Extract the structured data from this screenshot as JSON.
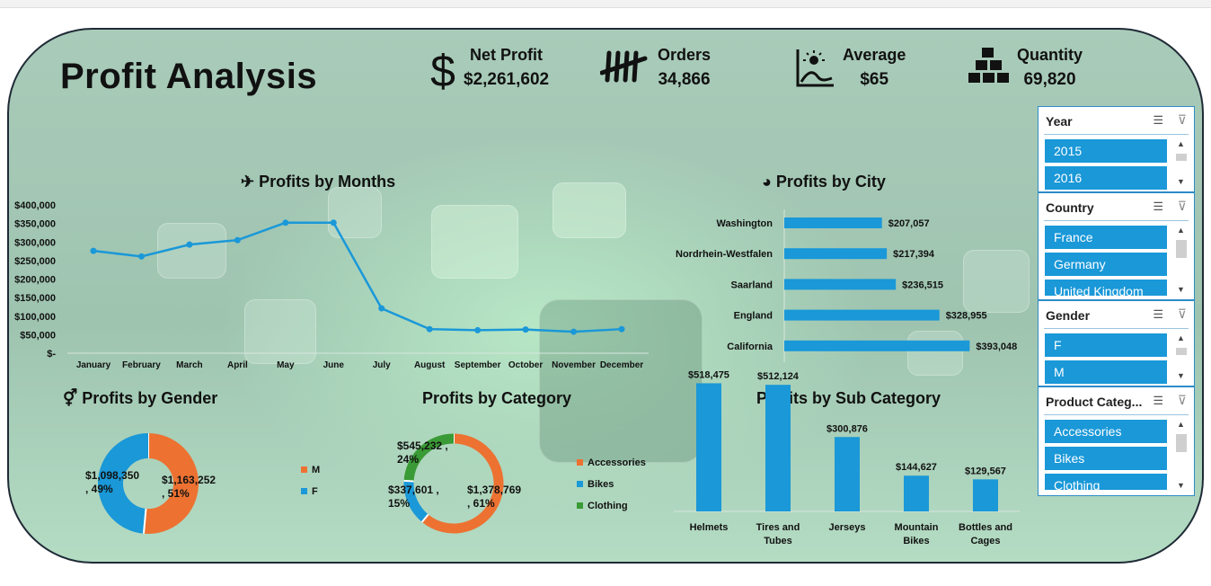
{
  "dashboard": {
    "title": "Profit Analysis",
    "kpis": [
      {
        "label": "Net Profit",
        "value": "$2,261,602",
        "icon": "dollar-icon"
      },
      {
        "label": "Orders",
        "value": "34,866",
        "icon": "tally-icon"
      },
      {
        "label": "Average",
        "value": "$65",
        "icon": "chart-average-icon"
      },
      {
        "label": "Quantity",
        "value": "69,820",
        "icon": "boxes-icon"
      }
    ]
  },
  "colors": {
    "blue": "#1a98d8",
    "orange": "#ed7232",
    "green": "#3a9a35",
    "text": "#111111"
  },
  "chart_data": [
    {
      "type": "line",
      "title": "Profits by Months",
      "categories": [
        "January",
        "February",
        "March",
        "April",
        "May",
        "June",
        "July",
        "August",
        "September",
        "October",
        "November",
        "December"
      ],
      "values": [
        276000,
        261000,
        293000,
        305000,
        352000,
        352000,
        121000,
        65000,
        62000,
        64000,
        58000,
        65000
      ],
      "ylim": [
        0,
        400000
      ],
      "yticks": [
        "$-",
        "$50,000",
        "$100,000",
        "$150,000",
        "$200,000",
        "$250,000",
        "$300,000",
        "$350,000",
        "$400,000"
      ],
      "legend": "none"
    },
    {
      "type": "bar",
      "orientation": "horizontal",
      "title": "Profits by City",
      "categories": [
        "Washington",
        "Nordrhein-Westfalen",
        "Saarland",
        "England",
        "California"
      ],
      "values": [
        207057,
        217394,
        236515,
        328955,
        393048
      ],
      "labels": [
        "$207,057",
        "$217,394",
        "$236,515",
        "$328,955",
        "$393,048"
      ]
    },
    {
      "type": "pie",
      "title": "Profits by Gender",
      "categories": [
        "M",
        "F"
      ],
      "values": [
        1163252,
        1098350
      ],
      "labels": [
        "$1,163,252 , 51%",
        "$1,098,350 , 49%"
      ],
      "legend": "right"
    },
    {
      "type": "pie",
      "title": "Profits by Category",
      "categories": [
        "Accessories",
        "Bikes",
        "Clothing"
      ],
      "values": [
        1378769,
        337601,
        545232
      ],
      "labels": [
        "$1,378,769 , 61%",
        "$337,601 , 15%",
        "$545,232 , 24%"
      ],
      "legend": "right"
    },
    {
      "type": "bar",
      "title": "Profits by Sub Category",
      "categories": [
        "Helmets",
        "Tires and Tubes",
        "Jerseys",
        "Mountain Bikes",
        "Bottles and Cages"
      ],
      "values": [
        518475,
        512124,
        300876,
        144627,
        129567
      ],
      "labels": [
        "$518,475",
        "$512,124",
        "$300,876",
        "$144,627",
        "$129,567"
      ]
    }
  ],
  "slicers": [
    {
      "title": "Year",
      "items": [
        "2015",
        "2016"
      ]
    },
    {
      "title": "Country",
      "items": [
        "France",
        "Germany",
        "United Kingdom"
      ]
    },
    {
      "title": "Gender",
      "items": [
        "F",
        "M"
      ]
    },
    {
      "title": "Product Categ...",
      "items": [
        "Accessories",
        "Bikes",
        "Clothing"
      ]
    }
  ]
}
